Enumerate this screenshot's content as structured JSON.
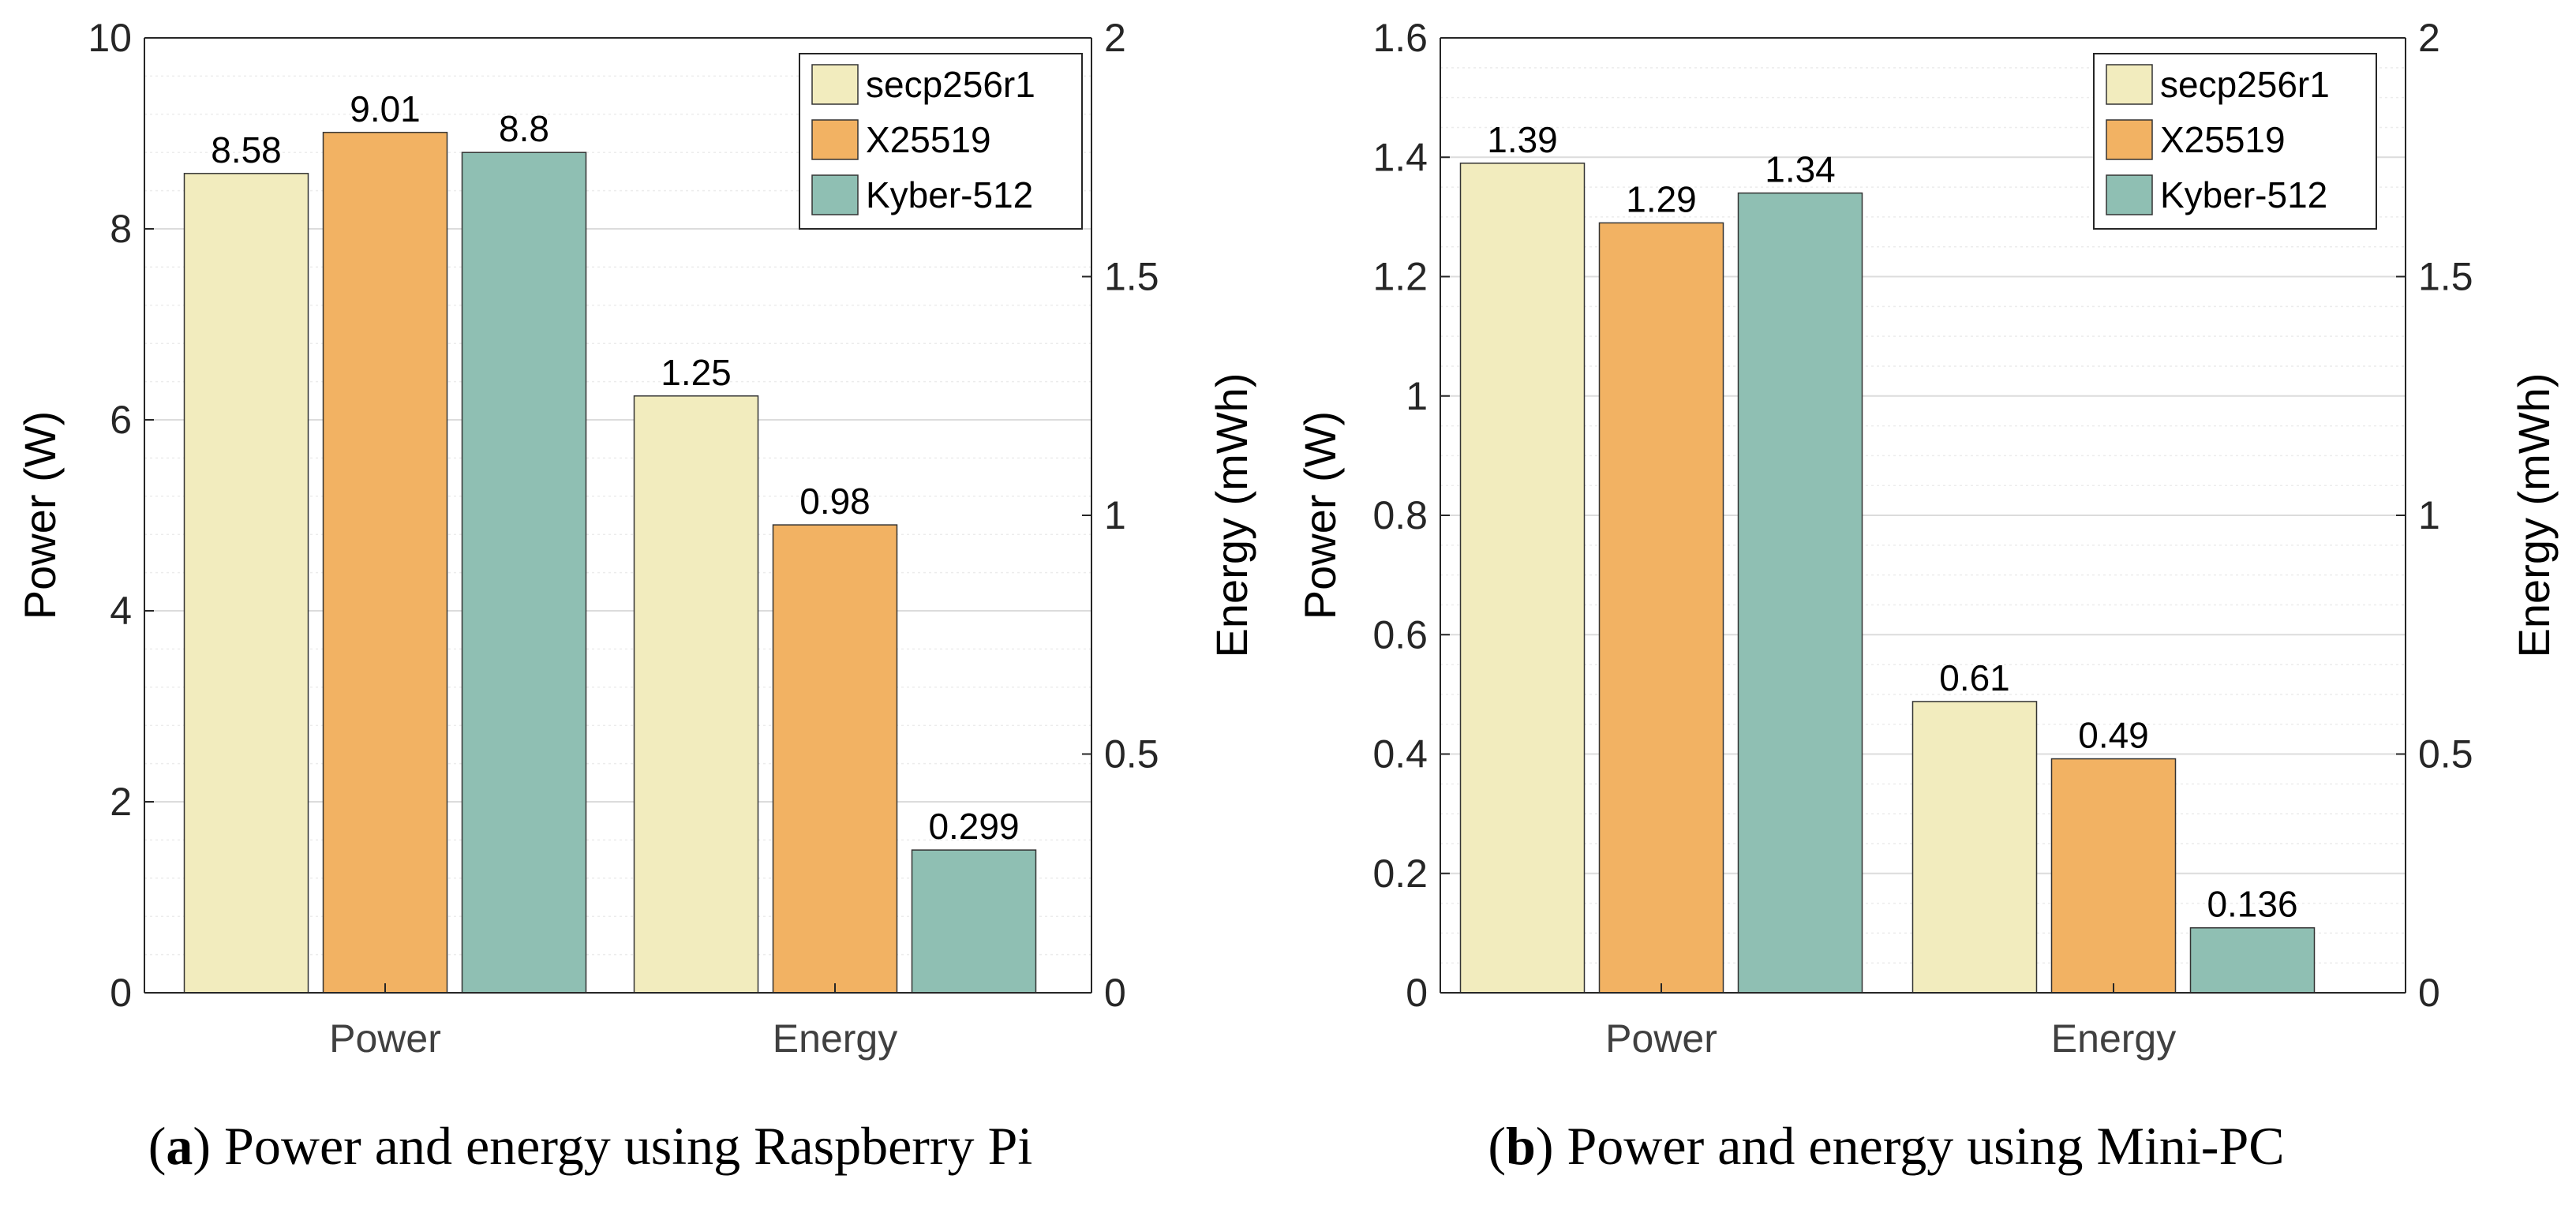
{
  "colors": {
    "secp256r1": "#f2ecbe",
    "X25519": "#f2b263",
    "Kyber-512": "#8fbfb3",
    "axis": "#262626",
    "grid": "#e1e1e1"
  },
  "chart_data": [
    {
      "type": "bar",
      "title": "",
      "caption_letter": "a",
      "caption_text": ") Power and energy using Raspberry Pi",
      "caption_open": "(",
      "categories": [
        "Power",
        "Energy"
      ],
      "ylabel_left": "Power (W)",
      "ylabel_right": "Energy (mWh)",
      "ylim_left": [
        0,
        10
      ],
      "ylim_right": [
        0,
        2
      ],
      "yticks_left": [
        "0",
        "2",
        "4",
        "6",
        "8",
        "10"
      ],
      "yticks_right": [
        "0",
        "0.5",
        "1",
        "1.5",
        "2"
      ],
      "grid": true,
      "legend_position": "top-right",
      "series": [
        {
          "name": "secp256r1",
          "power": 8.58,
          "energy": 1.25,
          "power_label": "8.58",
          "energy_label": "1.25"
        },
        {
          "name": "X25519",
          "power": 9.01,
          "energy": 0.98,
          "power_label": "9.01",
          "energy_label": "0.98"
        },
        {
          "name": "Kyber-512",
          "power": 8.8,
          "energy": 0.299,
          "power_label": "8.8",
          "energy_label": "0.299"
        }
      ]
    },
    {
      "type": "bar",
      "title": "",
      "caption_letter": "b",
      "caption_text": ") Power and energy using Mini-PC",
      "caption_open": "(",
      "categories": [
        "Power",
        "Energy"
      ],
      "ylabel_left": "Power (W)",
      "ylabel_right": "Energy (mWh)",
      "ylim_left": [
        0,
        1.6
      ],
      "ylim_right": [
        0,
        2
      ],
      "yticks_left": [
        "0",
        "0.2",
        "0.4",
        "0.6",
        "0.8",
        "1",
        "1.2",
        "1.4",
        "1.6"
      ],
      "yticks_right": [
        "0",
        "0.5",
        "1",
        "1.5",
        "2"
      ],
      "grid": true,
      "legend_position": "top-right",
      "series": [
        {
          "name": "secp256r1",
          "power": 1.39,
          "energy": 0.61,
          "power_label": "1.39",
          "energy_label": "0.61"
        },
        {
          "name": "X25519",
          "power": 1.29,
          "energy": 0.49,
          "power_label": "1.29",
          "energy_label": "0.49"
        },
        {
          "name": "Kyber-512",
          "power": 1.34,
          "energy": 0.136,
          "power_label": "1.34",
          "energy_label": "0.136"
        }
      ]
    }
  ]
}
